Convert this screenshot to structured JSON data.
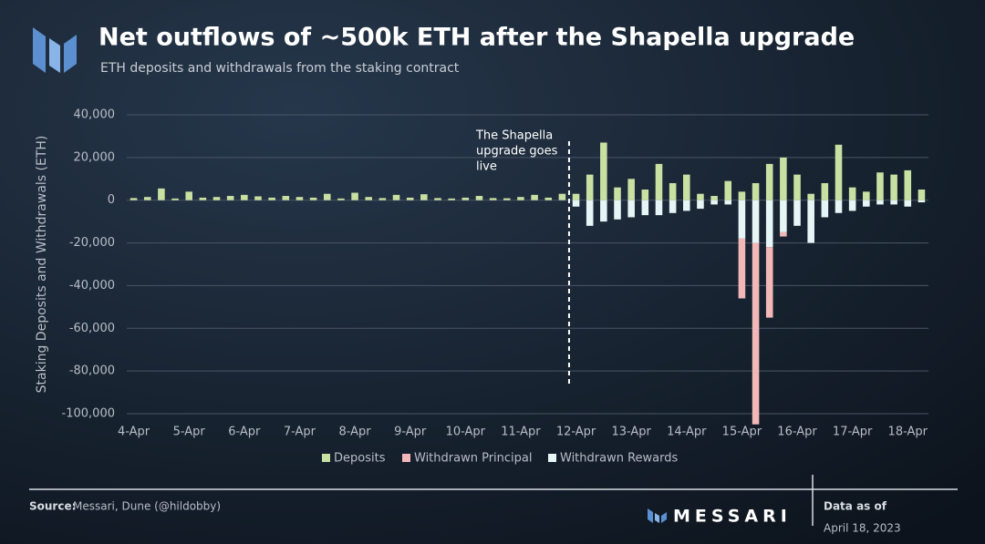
{
  "chart_data": {
    "type": "stacked_bar",
    "title": "Net outflows of ~500k ETH after the Shapella upgrade",
    "subtitle": "ETH deposits and withdrawals from the staking contract",
    "y_label": "Staking Deposits and Withdrawals (ETH)",
    "annotation": {
      "lines": [
        "The Shapella",
        "upgrade goes",
        "live"
      ],
      "category_index": 32
    },
    "categories": [
      "4-Apr",
      null,
      null,
      null,
      "5-Apr",
      null,
      null,
      null,
      "6-Apr",
      null,
      null,
      null,
      "7-Apr",
      null,
      null,
      null,
      "8-Apr",
      null,
      null,
      null,
      "9-Apr",
      null,
      null,
      null,
      "10-Apr",
      null,
      null,
      null,
      "11-Apr",
      null,
      null,
      null,
      "12-Apr",
      null,
      null,
      null,
      "13-Apr",
      null,
      null,
      null,
      "14-Apr",
      null,
      null,
      null,
      "15-Apr",
      null,
      null,
      null,
      "16-Apr",
      null,
      null,
      null,
      "17-Apr",
      null,
      null,
      null,
      "18-Apr",
      null
    ],
    "series": [
      {
        "name": "Deposits",
        "color": "#c8e0a2",
        "values": [
          1000,
          1500,
          5500,
          800,
          4000,
          1200,
          1500,
          2000,
          2500,
          1800,
          1200,
          2000,
          1500,
          1200,
          3000,
          800,
          3500,
          1500,
          1000,
          2500,
          1200,
          2800,
          1000,
          800,
          1200,
          2000,
          1000,
          900,
          1500,
          2500,
          1200,
          3000,
          3000,
          12000,
          27000,
          6000,
          10000,
          5000,
          17000,
          8000,
          12000,
          3000,
          2000,
          9000,
          4000,
          8000,
          17000,
          20000,
          12000,
          3000,
          8000,
          26000,
          6000,
          4000,
          13000,
          12000,
          14000,
          5000
        ]
      },
      {
        "name": "Withdrawn Principal",
        "color": "#f2b8b8",
        "values": [
          0,
          0,
          0,
          0,
          0,
          0,
          0,
          0,
          0,
          0,
          0,
          0,
          0,
          0,
          0,
          0,
          0,
          0,
          0,
          0,
          0,
          0,
          0,
          0,
          0,
          0,
          0,
          0,
          0,
          0,
          0,
          0,
          0,
          0,
          0,
          0,
          0,
          0,
          0,
          0,
          0,
          0,
          0,
          0,
          -28000,
          -85000,
          -33000,
          -2000,
          0,
          0,
          0,
          0,
          0,
          0,
          0,
          0,
          0,
          0
        ]
      },
      {
        "name": "Withdrawn Rewards",
        "color": "#e6f5f5",
        "values": [
          0,
          0,
          0,
          0,
          0,
          0,
          0,
          0,
          0,
          0,
          0,
          0,
          0,
          0,
          0,
          0,
          0,
          0,
          0,
          0,
          0,
          0,
          0,
          0,
          0,
          0,
          0,
          0,
          0,
          0,
          0,
          0,
          -3000,
          -12000,
          -10000,
          -9000,
          -8000,
          -7000,
          -7000,
          -6000,
          -5000,
          -4000,
          -2000,
          -2000,
          -18000,
          -20000,
          -22000,
          -15000,
          -12000,
          -20000,
          -8000,
          -6000,
          -5000,
          -3000,
          -2000,
          -2000,
          -3000,
          -1000
        ]
      }
    ],
    "ylim": [
      -100000,
      40000
    ],
    "yticks": [
      {
        "value": -100000,
        "label": "-100,000"
      },
      {
        "value": -80000,
        "label": "-80,000"
      },
      {
        "value": -60000,
        "label": "-60,000"
      },
      {
        "value": -40000,
        "label": "-40,000"
      },
      {
        "value": -20000,
        "label": "-20,000"
      },
      0,
      {
        "value": 20000,
        "label": "20,000"
      },
      {
        "value": 40000,
        "label": "40,000"
      }
    ],
    "grid": true,
    "legend": "bottom",
    "footer": {
      "source_label": "Source:",
      "source": "Messari, Dune (@hildobby)",
      "brand": "MESSARI",
      "date_label": "Data as of",
      "date": "April 18, 2023"
    }
  }
}
